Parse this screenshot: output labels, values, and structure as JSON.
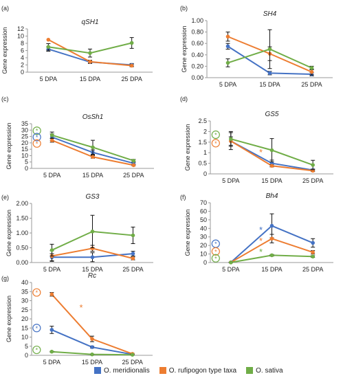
{
  "colors": {
    "O. meridionalis": "#4472c4",
    "O. rufipogon type taxa": "#ed7d31",
    "O. sativa": "#70ad47"
  },
  "legend": {
    "items": [
      "O. meridionalis",
      "O. rufipogon type taxa",
      "O. sativa"
    ]
  },
  "chart_data": [
    {
      "panel": "(a)",
      "title": "qSH1",
      "type": "line",
      "ylabel": "Gene expression",
      "categories": [
        "5 DPA",
        "15 DPA",
        "25 DPA"
      ],
      "ylim": [
        0,
        12
      ],
      "yticks": [
        "0",
        "2",
        "4",
        "6",
        "8",
        "10",
        "12"
      ],
      "grid": false,
      "series": [
        {
          "name": "O. meridionalis",
          "values": [
            6.4,
            2.8,
            2.0
          ],
          "errors": [
            0.6,
            0.4,
            0.4
          ]
        },
        {
          "name": "O. rufipogon type taxa",
          "values": [
            9.0,
            2.9,
            1.8
          ],
          "errors": [
            0,
            0.4,
            0.3
          ]
        },
        {
          "name": "O. sativa",
          "values": [
            7.0,
            5.3,
            8.1
          ],
          "errors": [
            0.9,
            1.1,
            1.5
          ]
        }
      ],
      "annotations": []
    },
    {
      "panel": "(b)",
      "title": "SH4",
      "type": "line",
      "ylabel": "Gene expression",
      "categories": [
        "5 DPA",
        "15 DPA",
        "25 DPA"
      ],
      "ylim": [
        0,
        1
      ],
      "yticks": [
        "0.00",
        "0.20",
        "0.40",
        "0.60",
        "0.80",
        "1.00"
      ],
      "grid": false,
      "series": [
        {
          "name": "O. meridionalis",
          "values": [
            0.55,
            0.08,
            0.06
          ],
          "errors": [
            0.05,
            0.03,
            0.03
          ]
        },
        {
          "name": "O. rufipogon type taxa",
          "values": [
            0.72,
            0.42,
            0.1
          ],
          "errors": [
            0.08,
            0.12,
            0.05
          ]
        },
        {
          "name": "O. sativa",
          "values": [
            0.26,
            0.5,
            0.17
          ],
          "errors": [
            0.07,
            0.34,
            0.03
          ]
        }
      ],
      "annotations": []
    },
    {
      "panel": "(c)",
      "title": "OsSh1",
      "type": "line",
      "ylabel": "Gene expression",
      "categories": [
        "5 DPA",
        "15 DPA",
        "25 DPA"
      ],
      "ylim": [
        0,
        35
      ],
      "yticks": [
        "0",
        "5",
        "10",
        "15",
        "20",
        "25",
        "30",
        "35"
      ],
      "grid": false,
      "series": [
        {
          "name": "O. meridionalis",
          "values": [
            24.5,
            12.5,
            4.0
          ],
          "errors": [
            2.5,
            2.0,
            1.0
          ]
        },
        {
          "name": "O. rufipogon type taxa",
          "values": [
            22.0,
            9.0,
            2.5
          ],
          "errors": [
            1.5,
            1.0,
            0.5
          ]
        },
        {
          "name": "O. sativa",
          "values": [
            26.0,
            16.5,
            6.0
          ],
          "errors": [
            2.5,
            5.5,
            1.0
          ]
        }
      ],
      "annotations": [
        {
          "series": "O. sativa",
          "symbol": "circled-star",
          "category": "5 DPA",
          "y": 29.5
        },
        {
          "series": "O. meridionalis",
          "symbol": "circled-star",
          "category": "5 DPA",
          "y": 24.5
        },
        {
          "series": "O. rufipogon type taxa",
          "symbol": "circled-star",
          "category": "5 DPA",
          "y": 19.5
        }
      ]
    },
    {
      "panel": "(d)",
      "title": "GS5",
      "type": "line",
      "ylabel": "Gene expression",
      "categories": [
        "5 DPA",
        "15 DPA",
        "25 DPA"
      ],
      "ylim": [
        0,
        2.5
      ],
      "yticks": [
        "0",
        "0.5",
        "1",
        "1.5",
        "2",
        "2.5"
      ],
      "grid": false,
      "series": [
        {
          "name": "O. meridionalis",
          "values": [
            1.55,
            0.5,
            0.18
          ],
          "errors": [
            0.2,
            0.15,
            0.05
          ]
        },
        {
          "name": "O. rufipogon type taxa",
          "values": [
            1.55,
            0.38,
            0.15
          ],
          "errors": [
            0.4,
            0.05,
            0.04
          ]
        },
        {
          "name": "O. sativa",
          "values": [
            1.65,
            1.12,
            0.42
          ],
          "errors": [
            0.35,
            0.55,
            0.22
          ]
        }
      ],
      "annotations": [
        {
          "series": "O. sativa",
          "symbol": "circled-star",
          "category": "5 DPA",
          "y": 1.85
        },
        {
          "series": "O. rufipogon type taxa",
          "symbol": "circled-star",
          "category": "5 DPA",
          "y": 1.45
        },
        {
          "series": "O. rufipogon type taxa",
          "symbol": "star",
          "category": "15 DPA",
          "y": 1.0
        }
      ]
    },
    {
      "panel": "(e)",
      "title": "GS3",
      "type": "line",
      "ylabel": "Gene expression",
      "categories": [
        "5 DPA",
        "15 DPA",
        "25 DPA"
      ],
      "ylim": [
        0,
        2
      ],
      "yticks": [
        "0.00",
        "0.50",
        "1.00",
        "1.50",
        "2.00"
      ],
      "grid": false,
      "series": [
        {
          "name": "O. meridionalis",
          "values": [
            0.18,
            0.18,
            0.3
          ],
          "errors": [
            0.12,
            0.15,
            0.08
          ]
        },
        {
          "name": "O. rufipogon type taxa",
          "values": [
            0.22,
            0.48,
            0.14
          ],
          "errors": [
            0.18,
            0.1,
            0.05
          ]
        },
        {
          "name": "O. sativa",
          "values": [
            0.42,
            1.05,
            0.92
          ],
          "errors": [
            0.2,
            0.55,
            0.28
          ]
        }
      ],
      "annotations": []
    },
    {
      "panel": "(f)",
      "title": "Bh4",
      "type": "line",
      "ylabel": "Gene expression",
      "categories": [
        "5 DPA",
        "15 DPA",
        "25 DPA"
      ],
      "ylim": [
        0,
        70
      ],
      "yticks": [
        "0",
        "10",
        "20",
        "30",
        "40",
        "50",
        "60",
        "70"
      ],
      "grid": false,
      "series": [
        {
          "name": "O. meridionalis",
          "values": [
            0.2,
            43.0,
            23.0
          ],
          "errors": [
            0.2,
            14.0,
            5.0
          ]
        },
        {
          "name": "O. rufipogon type taxa",
          "values": [
            0.2,
            28.0,
            12.0
          ],
          "errors": [
            0.2,
            5.0,
            2.0
          ]
        },
        {
          "name": "O. sativa",
          "values": [
            0.1,
            8.5,
            7.0
          ],
          "errors": [
            0.1,
            1.0,
            1.0
          ]
        }
      ],
      "annotations": [
        {
          "series": "O. meridionalis",
          "symbol": "circled-star",
          "category": "5 DPA",
          "y": 22
        },
        {
          "series": "O. rufipogon type taxa",
          "symbol": "circled-star",
          "category": "5 DPA",
          "y": 13
        },
        {
          "series": "O. sativa",
          "symbol": "circled-star",
          "category": "5 DPA",
          "y": 5
        },
        {
          "series": "O. meridionalis",
          "symbol": "star",
          "category": "15 DPA",
          "y": 38
        },
        {
          "series": "O. rufipogon type taxa",
          "symbol": "star",
          "category": "15 DPA",
          "y": 25
        },
        {
          "series": "O. sativa",
          "symbol": "star",
          "category": "15 DPA",
          "y": 12
        }
      ]
    },
    {
      "panel": "(g)",
      "title": "Rc",
      "type": "line",
      "ylabel": "Gene expression",
      "categories": [
        "5 DPA",
        "15 DPA",
        "25 DPA"
      ],
      "ylim": [
        0,
        40
      ],
      "yticks": [
        "0",
        "5",
        "10",
        "15",
        "20",
        "25",
        "30",
        "35",
        "40"
      ],
      "grid": false,
      "series": [
        {
          "name": "O. meridionalis",
          "values": [
            14.0,
            4.5,
            0.5
          ],
          "errors": [
            2.0,
            0.5,
            0.2
          ]
        },
        {
          "name": "O. rufipogon type taxa",
          "values": [
            33.5,
            9.0,
            0.8
          ],
          "errors": [
            1.0,
            1.5,
            0.3
          ]
        },
        {
          "name": "O. sativa",
          "values": [
            2.0,
            0.5,
            0.3
          ],
          "errors": [
            0.2,
            0.1,
            0.1
          ]
        }
      ],
      "annotations": [
        {
          "series": "O. rufipogon type taxa",
          "symbol": "circled-star",
          "category": "5 DPA",
          "y": 34.5
        },
        {
          "series": "O. meridionalis",
          "symbol": "circled-star",
          "category": "5 DPA",
          "y": 15
        },
        {
          "series": "O. sativa",
          "symbol": "circled-star",
          "category": "5 DPA",
          "y": 3
        },
        {
          "series": "O. rufipogon type taxa",
          "symbol": "star",
          "category": "15 DPA",
          "y": 26
        }
      ]
    }
  ]
}
